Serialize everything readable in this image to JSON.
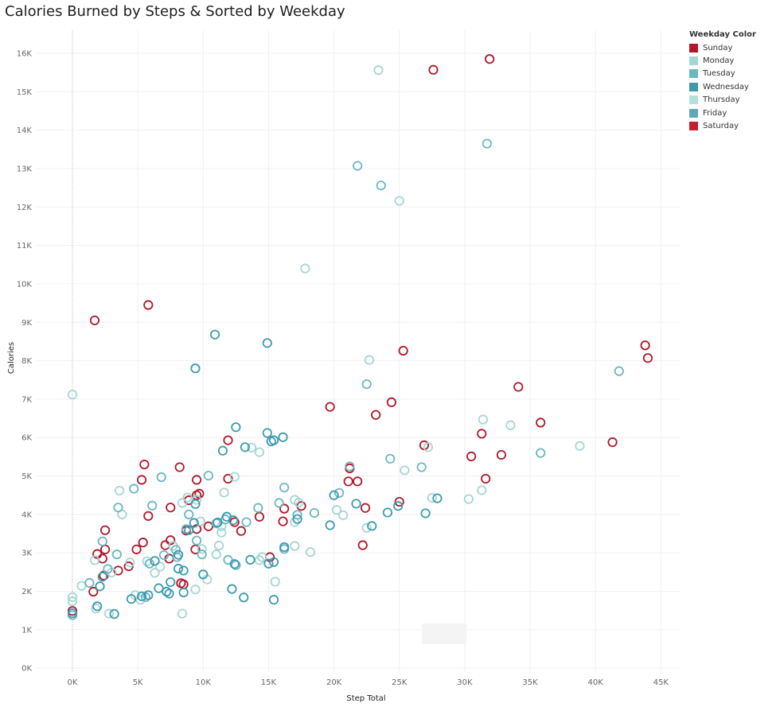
{
  "chart_data": {
    "type": "scatter",
    "title": "Calories Burned by Steps & Sorted by Weekday",
    "xlabel": "Step Total",
    "ylabel": "Calories",
    "xlim": [
      -2800,
      46500
    ],
    "ylim": [
      -100,
      16600
    ],
    "x_ticks": [
      0,
      5000,
      10000,
      15000,
      20000,
      25000,
      30000,
      35000,
      40000,
      45000
    ],
    "x_tick_labels": [
      "0K",
      "5K",
      "10K",
      "15K",
      "20K",
      "25K",
      "30K",
      "35K",
      "40K",
      "45K"
    ],
    "y_ticks": [
      0,
      1000,
      2000,
      3000,
      4000,
      5000,
      6000,
      7000,
      8000,
      9000,
      10000,
      11000,
      12000,
      13000,
      14000,
      15000,
      16000
    ],
    "y_tick_labels": [
      "0K",
      "1K",
      "2K",
      "3K",
      "4K",
      "5K",
      "6K",
      "7K",
      "8K",
      "9K",
      "10K",
      "11K",
      "12K",
      "13K",
      "14K",
      "15K",
      "16K"
    ],
    "grid": true,
    "legend_title": "Weekday Color",
    "legend_position": "top-right",
    "series": [
      {
        "name": "Sunday",
        "color": "#b0172a",
        "points": [
          [
            27600,
            15570
          ],
          [
            31900,
            15850
          ],
          [
            43800,
            8400
          ],
          [
            44000,
            8070
          ],
          [
            25300,
            8260
          ],
          [
            34100,
            7320
          ],
          [
            35800,
            6390
          ],
          [
            19700,
            6800
          ],
          [
            24400,
            6920
          ],
          [
            23200,
            6590
          ],
          [
            41300,
            5880
          ],
          [
            31300,
            6100
          ],
          [
            26900,
            5800
          ],
          [
            30500,
            5510
          ],
          [
            32800,
            5550
          ],
          [
            31600,
            4930
          ],
          [
            21200,
            5200
          ],
          [
            21100,
            4860
          ],
          [
            21800,
            4860
          ],
          [
            25000,
            4330
          ],
          [
            22400,
            4170
          ],
          [
            22200,
            3200
          ],
          [
            17500,
            4220
          ],
          [
            16200,
            4150
          ],
          [
            16100,
            3820
          ],
          [
            14300,
            3940
          ],
          [
            12400,
            3800
          ],
          [
            12900,
            3570
          ],
          [
            11900,
            5930
          ],
          [
            11900,
            4930
          ],
          [
            15100,
            2890
          ],
          [
            10400,
            3690
          ],
          [
            9500,
            3620
          ],
          [
            9400,
            3090
          ],
          [
            9700,
            4540
          ],
          [
            9500,
            4500
          ],
          [
            9500,
            4900
          ],
          [
            8900,
            4370
          ],
          [
            8200,
            5230
          ],
          [
            8700,
            3580
          ],
          [
            7100,
            3200
          ],
          [
            7500,
            4180
          ],
          [
            7500,
            3330
          ],
          [
            7400,
            2850
          ],
          [
            8300,
            2210
          ],
          [
            8500,
            2180
          ],
          [
            5500,
            5300
          ],
          [
            5300,
            4900
          ],
          [
            5800,
            3960
          ],
          [
            5400,
            3270
          ],
          [
            4900,
            3090
          ],
          [
            4300,
            2650
          ],
          [
            3500,
            2540
          ],
          [
            2500,
            3590
          ],
          [
            2500,
            3090
          ],
          [
            2300,
            2850
          ],
          [
            2400,
            2410
          ],
          [
            1900,
            2970
          ],
          [
            1600,
            1990
          ],
          [
            1700,
            9050
          ],
          [
            5800,
            9450
          ],
          [
            0,
            1490
          ]
        ]
      },
      {
        "name": "Monday",
        "color": "#a5d6d3",
        "points": [
          [
            23400,
            15560
          ],
          [
            25000,
            12160
          ],
          [
            17800,
            10400
          ],
          [
            22700,
            8020
          ],
          [
            31400,
            6470
          ],
          [
            33500,
            6320
          ],
          [
            38800,
            5780
          ],
          [
            27200,
            5750
          ],
          [
            25400,
            5150
          ],
          [
            30300,
            4400
          ],
          [
            31300,
            4630
          ],
          [
            27500,
            4430
          ],
          [
            22500,
            3650
          ],
          [
            20700,
            3980
          ],
          [
            20200,
            4120
          ],
          [
            17000,
            3800
          ],
          [
            17300,
            4310
          ],
          [
            17000,
            4380
          ],
          [
            18200,
            3020
          ],
          [
            17000,
            3180
          ],
          [
            15500,
            2250
          ],
          [
            14300,
            2810
          ],
          [
            14500,
            2890
          ],
          [
            13700,
            5740
          ],
          [
            14300,
            5620
          ],
          [
            12400,
            4980
          ],
          [
            11600,
            4570
          ],
          [
            11400,
            3690
          ],
          [
            11400,
            3530
          ],
          [
            11200,
            3190
          ],
          [
            11000,
            2960
          ],
          [
            9900,
            3100
          ],
          [
            10300,
            2310
          ],
          [
            9800,
            3820
          ],
          [
            9500,
            4380
          ],
          [
            8800,
            4440
          ],
          [
            8400,
            4300
          ],
          [
            7700,
            3180
          ],
          [
            6700,
            2640
          ],
          [
            6300,
            2480
          ],
          [
            5700,
            2780
          ],
          [
            5200,
            1780
          ],
          [
            4800,
            1900
          ],
          [
            4400,
            2750
          ],
          [
            3800,
            4000
          ],
          [
            3600,
            4620
          ],
          [
            3000,
            2490
          ],
          [
            2800,
            1420
          ],
          [
            1800,
            1550
          ],
          [
            1700,
            2810
          ],
          [
            700,
            2140
          ],
          [
            0,
            7120
          ],
          [
            0,
            1850
          ],
          [
            0,
            1740
          ],
          [
            8400,
            1420
          ],
          [
            9400,
            2050
          ]
        ]
      },
      {
        "name": "Tuesday",
        "color": "#6cb6c2",
        "points": [
          [
            31700,
            13650
          ],
          [
            21800,
            13070
          ],
          [
            23600,
            12560
          ],
          [
            41800,
            7730
          ],
          [
            22500,
            7390
          ],
          [
            35800,
            5600
          ],
          [
            26700,
            5230
          ],
          [
            24300,
            5450
          ],
          [
            21200,
            5250
          ],
          [
            20400,
            4560
          ],
          [
            18500,
            4040
          ],
          [
            17200,
            3990
          ],
          [
            16200,
            3100
          ],
          [
            16200,
            4700
          ],
          [
            15800,
            4300
          ],
          [
            14200,
            4170
          ],
          [
            13300,
            3800
          ],
          [
            12500,
            2680
          ],
          [
            11700,
            3870
          ],
          [
            11900,
            2820
          ],
          [
            11000,
            3770
          ],
          [
            10400,
            5010
          ],
          [
            9900,
            2960
          ],
          [
            9500,
            3320
          ],
          [
            8900,
            4000
          ],
          [
            8700,
            3620
          ],
          [
            7900,
            3080
          ],
          [
            8000,
            2890
          ],
          [
            7000,
            2940
          ],
          [
            6800,
            4970
          ],
          [
            6100,
            4230
          ],
          [
            5900,
            2720
          ],
          [
            5600,
            1850
          ],
          [
            4700,
            4670
          ],
          [
            3500,
            4180
          ],
          [
            3400,
            2960
          ],
          [
            2700,
            2580
          ],
          [
            2300,
            3300
          ],
          [
            1300,
            2220
          ],
          [
            0,
            1380
          ]
        ]
      },
      {
        "name": "Wednesday",
        "color": "#3c9aaf",
        "points": [
          [
            10900,
            8680
          ],
          [
            14900,
            8460
          ],
          [
            9400,
            7800
          ],
          [
            12500,
            6270
          ],
          [
            14900,
            6120
          ],
          [
            16100,
            6010
          ],
          [
            15200,
            5900
          ],
          [
            15400,
            5930
          ],
          [
            13200,
            5750
          ],
          [
            11500,
            5660
          ],
          [
            27900,
            4420
          ],
          [
            27000,
            4030
          ],
          [
            24900,
            4220
          ],
          [
            24100,
            4050
          ],
          [
            22900,
            3700
          ],
          [
            21700,
            4280
          ],
          [
            20000,
            4500
          ],
          [
            19700,
            3720
          ],
          [
            17200,
            3880
          ],
          [
            16200,
            3150
          ],
          [
            15400,
            2760
          ],
          [
            15000,
            2720
          ],
          [
            15400,
            1780
          ],
          [
            13100,
            1840
          ],
          [
            13600,
            2820
          ],
          [
            12300,
            3850
          ],
          [
            12400,
            2710
          ],
          [
            12200,
            2060
          ],
          [
            11800,
            3940
          ],
          [
            11100,
            3790
          ],
          [
            10000,
            2440
          ],
          [
            9400,
            4270
          ],
          [
            9300,
            3780
          ],
          [
            8900,
            3590
          ],
          [
            8500,
            2540
          ],
          [
            8500,
            1970
          ],
          [
            8100,
            2950
          ],
          [
            8100,
            2590
          ],
          [
            7400,
            1940
          ],
          [
            7200,
            1990
          ],
          [
            7500,
            2240
          ],
          [
            6600,
            2080
          ],
          [
            6300,
            2790
          ],
          [
            5800,
            1900
          ],
          [
            5300,
            1870
          ],
          [
            4500,
            1800
          ],
          [
            3200,
            1410
          ],
          [
            2100,
            2130
          ],
          [
            2300,
            2380
          ],
          [
            1900,
            1610
          ],
          [
            0,
            1430
          ]
        ]
      },
      {
        "name": "Thursday",
        "color": "#b4e0da",
        "points": []
      },
      {
        "name": "Friday",
        "color": "#5fa9b7",
        "points": []
      },
      {
        "name": "Saturday",
        "color": "#c41e2f",
        "points": []
      }
    ]
  }
}
